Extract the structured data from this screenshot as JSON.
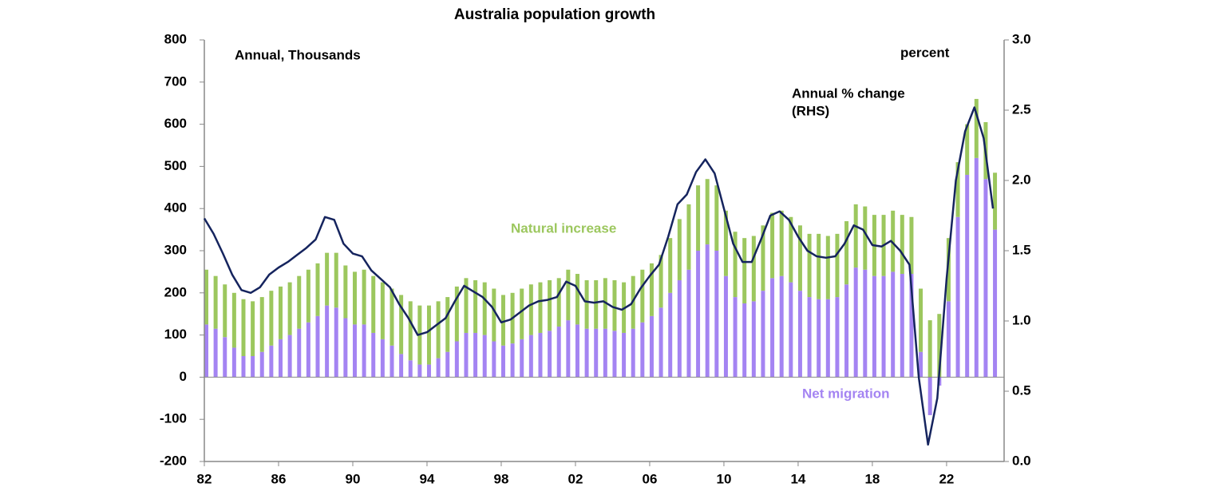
{
  "chart_data": {
    "type": "stacked-bar-line",
    "title": "Australia population growth",
    "annotations": [
      "Annual, Thousands",
      "percent",
      "Annual % change",
      "(RHS)"
    ],
    "x": [
      1982,
      1982.5,
      1983,
      1983.5,
      1984,
      1984.5,
      1985,
      1985.5,
      1986,
      1986.5,
      1987,
      1987.5,
      1988,
      1988.5,
      1989,
      1989.5,
      1990,
      1990.5,
      1991,
      1991.5,
      1992,
      1992.5,
      1993,
      1993.5,
      1994,
      1994.5,
      1995,
      1995.5,
      1996,
      1996.5,
      1997,
      1997.5,
      1998,
      1998.5,
      1999,
      1999.5,
      2000,
      2000.5,
      2001,
      2001.5,
      2002,
      2002.5,
      2003,
      2003.5,
      2004,
      2004.5,
      2005,
      2005.5,
      2006,
      2006.5,
      2007,
      2007.5,
      2008,
      2008.5,
      2009,
      2009.5,
      2010,
      2010.5,
      2011,
      2011.5,
      2012,
      2012.5,
      2013,
      2013.5,
      2014,
      2014.5,
      2015,
      2015.5,
      2016,
      2016.5,
      2017,
      2017.5,
      2018,
      2018.5,
      2019,
      2019.5,
      2020,
      2020.5,
      2021,
      2021.5,
      2022,
      2022.5,
      2023,
      2023.5,
      2024,
      2024.5
    ],
    "series": [
      {
        "name": "Net migration",
        "color": "#a484f2",
        "kind": "bar",
        "values": [
          125,
          115,
          95,
          70,
          50,
          50,
          60,
          75,
          90,
          100,
          115,
          130,
          145,
          170,
          165,
          140,
          125,
          125,
          105,
          90,
          75,
          55,
          40,
          30,
          30,
          45,
          60,
          85,
          105,
          105,
          100,
          85,
          75,
          80,
          90,
          100,
          105,
          110,
          120,
          135,
          125,
          115,
          115,
          115,
          110,
          105,
          115,
          130,
          145,
          165,
          200,
          230,
          255,
          300,
          315,
          300,
          240,
          190,
          175,
          180,
          205,
          235,
          240,
          225,
          205,
          190,
          185,
          185,
          190,
          220,
          260,
          255,
          240,
          240,
          250,
          245,
          245,
          60,
          -90,
          -20,
          180,
          380,
          480,
          520,
          470,
          350
        ]
      },
      {
        "name": "Natural increase",
        "color": "#9cc75e",
        "kind": "bar",
        "values": [
          130,
          125,
          125,
          130,
          135,
          130,
          130,
          130,
          125,
          125,
          125,
          125,
          125,
          125,
          130,
          125,
          125,
          130,
          135,
          135,
          135,
          140,
          140,
          140,
          140,
          135,
          130,
          130,
          130,
          125,
          125,
          125,
          120,
          120,
          120,
          120,
          120,
          120,
          115,
          120,
          120,
          115,
          115,
          120,
          120,
          120,
          125,
          125,
          125,
          125,
          130,
          145,
          155,
          155,
          155,
          155,
          155,
          155,
          155,
          155,
          155,
          155,
          155,
          155,
          155,
          150,
          155,
          150,
          150,
          150,
          150,
          150,
          145,
          145,
          145,
          140,
          135,
          150,
          135,
          150,
          150,
          130,
          120,
          140,
          135,
          135
        ]
      },
      {
        "name": "Annual % change (RHS)",
        "color": "#15245e",
        "kind": "line",
        "axis": "y2",
        "values": [
          1.73,
          1.62,
          1.48,
          1.33,
          1.22,
          1.2,
          1.24,
          1.33,
          1.38,
          1.42,
          1.47,
          1.52,
          1.58,
          1.74,
          1.72,
          1.55,
          1.48,
          1.46,
          1.36,
          1.3,
          1.24,
          1.12,
          1.02,
          0.9,
          0.92,
          0.97,
          1.02,
          1.14,
          1.25,
          1.21,
          1.17,
          1.1,
          0.99,
          1.01,
          1.06,
          1.11,
          1.14,
          1.15,
          1.17,
          1.28,
          1.25,
          1.14,
          1.13,
          1.14,
          1.1,
          1.08,
          1.12,
          1.23,
          1.32,
          1.4,
          1.6,
          1.83,
          1.9,
          2.06,
          2.15,
          2.05,
          1.8,
          1.55,
          1.42,
          1.42,
          1.58,
          1.75,
          1.78,
          1.72,
          1.6,
          1.5,
          1.46,
          1.45,
          1.46,
          1.55,
          1.68,
          1.65,
          1.54,
          1.53,
          1.57,
          1.5,
          1.4,
          0.6,
          0.12,
          0.45,
          1.3,
          2.0,
          2.35,
          2.52,
          2.3,
          1.8
        ]
      }
    ],
    "xlim": [
      1982,
      2025.1
    ],
    "xticks": [
      {
        "value": 1982,
        "label": "82"
      },
      {
        "value": 1986,
        "label": "86"
      },
      {
        "value": 1990,
        "label": "90"
      },
      {
        "value": 1994,
        "label": "94"
      },
      {
        "value": 1998,
        "label": "98"
      },
      {
        "value": 2002,
        "label": "02"
      },
      {
        "value": 2006,
        "label": "06"
      },
      {
        "value": 2010,
        "label": "10"
      },
      {
        "value": 2014,
        "label": "14"
      },
      {
        "value": 2018,
        "label": "18"
      },
      {
        "value": 2022,
        "label": "22"
      }
    ],
    "ylim": [
      -200,
      800
    ],
    "yticks": [
      -200,
      -100,
      0,
      100,
      200,
      300,
      400,
      500,
      600,
      700,
      800
    ],
    "y2lim": [
      0,
      3
    ],
    "y2ticks": [
      {
        "value": 0,
        "label": "0.0"
      },
      {
        "value": 0.5,
        "label": "0.5"
      },
      {
        "value": 1,
        "label": "1.0"
      },
      {
        "value": 1.5,
        "label": "1.5"
      },
      {
        "value": 2,
        "label": "2.0"
      },
      {
        "value": 2.5,
        "label": "2.5"
      },
      {
        "value": 3,
        "label": "3.0"
      }
    ],
    "grid": false
  }
}
